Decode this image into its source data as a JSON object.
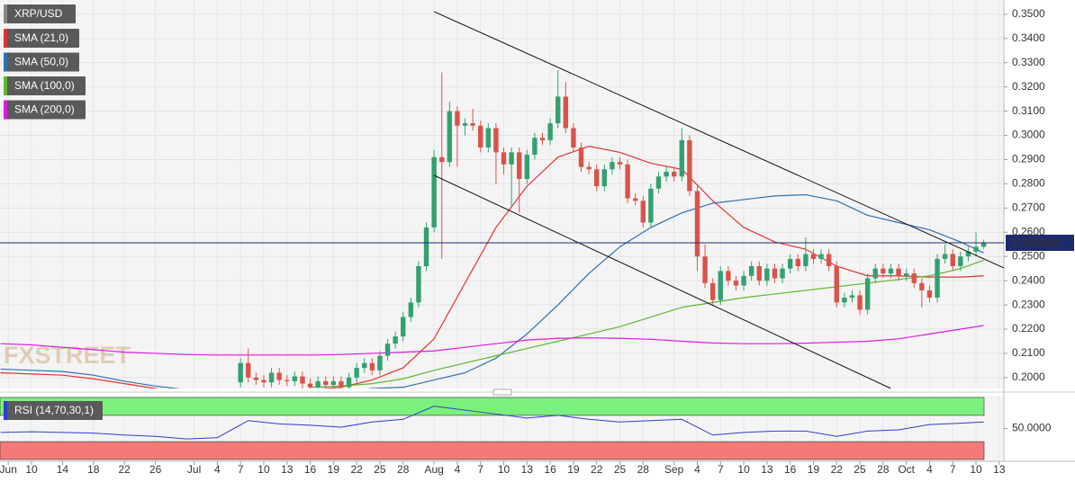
{
  "chart_data": {
    "type": "candlestick",
    "watermark": "FXSTREET",
    "xlim": [
      4.93,
      134.6
    ],
    "ylim": [
      0.1955,
      0.3559
    ],
    "grid": true,
    "up_color": "#33a070",
    "down_color": "#d9534b",
    "yticks": [
      {
        "value": 0.2,
        "label": "0.2000"
      },
      {
        "value": 0.21,
        "label": "0.2100"
      },
      {
        "value": 0.22,
        "label": "0.2200"
      },
      {
        "value": 0.23,
        "label": "0.2300"
      },
      {
        "value": 0.24,
        "label": "0.2400"
      },
      {
        "value": 0.25,
        "label": "0.2500"
      },
      {
        "value": 0.26,
        "label": "0.2600"
      },
      {
        "value": 0.27,
        "label": "0.2700"
      },
      {
        "value": 0.28,
        "label": "0.2800"
      },
      {
        "value": 0.29,
        "label": "0.2900"
      },
      {
        "value": 0.3,
        "label": "0.3000"
      },
      {
        "value": 0.31,
        "label": "0.3100"
      },
      {
        "value": 0.32,
        "label": "0.3200"
      },
      {
        "value": 0.33,
        "label": "0.3300"
      },
      {
        "value": 0.34,
        "label": "0.3400"
      },
      {
        "value": 0.35,
        "label": "0.3500"
      }
    ],
    "xticks": [
      {
        "value": 6,
        "label": "Jun"
      },
      {
        "value": 9,
        "label": "10"
      },
      {
        "value": 13,
        "label": "14"
      },
      {
        "value": 17,
        "label": "18"
      },
      {
        "value": 21,
        "label": "22"
      },
      {
        "value": 25,
        "label": "26"
      },
      {
        "value": 30,
        "label": "Jul"
      },
      {
        "value": 33,
        "label": "4"
      },
      {
        "value": 36,
        "label": "7"
      },
      {
        "value": 39,
        "label": "10"
      },
      {
        "value": 42,
        "label": "13"
      },
      {
        "value": 45,
        "label": "16"
      },
      {
        "value": 48,
        "label": "19"
      },
      {
        "value": 51,
        "label": "22"
      },
      {
        "value": 54,
        "label": "25"
      },
      {
        "value": 57,
        "label": "28"
      },
      {
        "value": 61,
        "label": "Aug"
      },
      {
        "value": 64,
        "label": "4"
      },
      {
        "value": 67,
        "label": "7"
      },
      {
        "value": 70,
        "label": "10"
      },
      {
        "value": 73,
        "label": "13"
      },
      {
        "value": 76,
        "label": "16"
      },
      {
        "value": 79,
        "label": "19"
      },
      {
        "value": 82,
        "label": "22"
      },
      {
        "value": 85,
        "label": "25"
      },
      {
        "value": 88,
        "label": "28"
      },
      {
        "value": 92,
        "label": "Sep"
      },
      {
        "value": 95,
        "label": "4"
      },
      {
        "value": 98,
        "label": "7"
      },
      {
        "value": 101,
        "label": "10"
      },
      {
        "value": 104,
        "label": "13"
      },
      {
        "value": 107,
        "label": "16"
      },
      {
        "value": 110,
        "label": "19"
      },
      {
        "value": 113,
        "label": "22"
      },
      {
        "value": 116,
        "label": "25"
      },
      {
        "value": 119,
        "label": "28"
      },
      {
        "value": 122,
        "label": "Oct"
      },
      {
        "value": 125,
        "label": "4"
      },
      {
        "value": 128,
        "label": "7"
      },
      {
        "value": 131,
        "label": "10"
      },
      {
        "value": 134,
        "label": "13"
      }
    ],
    "candles": {
      "name": "XRP/USD",
      "x": [
        36,
        37,
        38,
        39,
        40,
        41,
        42,
        43,
        44,
        45,
        46,
        47,
        48,
        49,
        50,
        51,
        52,
        53,
        54,
        55,
        56,
        57,
        58,
        59,
        60,
        61,
        62,
        63,
        64,
        65,
        66,
        67,
        68,
        69,
        70,
        71,
        72,
        73,
        74,
        75,
        76,
        77,
        78,
        79,
        80,
        81,
        82,
        83,
        84,
        85,
        86,
        87,
        88,
        89,
        90,
        91,
        92,
        93,
        94,
        95,
        96,
        97,
        98,
        99,
        100,
        101,
        102,
        103,
        104,
        105,
        106,
        107,
        108,
        109,
        110,
        111,
        112,
        113,
        114,
        115,
        116,
        117,
        118,
        119,
        120,
        121,
        122,
        123,
        124,
        125,
        126,
        127,
        128,
        129,
        130,
        131,
        132
      ],
      "open": [
        0.198,
        0.206,
        0.2,
        0.199,
        0.198,
        0.202,
        0.199,
        0.1985,
        0.2005,
        0.1975,
        0.196,
        0.1985,
        0.197,
        0.1985,
        0.196,
        0.2,
        0.204,
        0.206,
        0.203,
        0.209,
        0.214,
        0.217,
        0.225,
        0.231,
        0.246,
        0.262,
        0.291,
        0.289,
        0.31,
        0.304,
        0.305,
        0.304,
        0.295,
        0.303,
        0.293,
        0.288,
        0.293,
        0.282,
        0.292,
        0.299,
        0.298,
        0.305,
        0.316,
        0.303,
        0.295,
        0.287,
        0.286,
        0.279,
        0.286,
        0.289,
        0.288,
        0.274,
        0.273,
        0.264,
        0.278,
        0.283,
        0.285,
        0.283,
        0.298,
        0.277,
        0.25,
        0.239,
        0.232,
        0.244,
        0.24,
        0.238,
        0.242,
        0.246,
        0.24,
        0.245,
        0.241,
        0.245,
        0.249,
        0.246,
        0.251,
        0.249,
        0.251,
        0.246,
        0.231,
        0.233,
        0.234,
        0.228,
        0.241,
        0.245,
        0.243,
        0.245,
        0.242,
        0.243,
        0.239,
        0.236,
        0.233,
        0.249,
        0.251,
        0.246,
        0.25,
        0.252,
        0.254
      ],
      "high": [
        0.208,
        0.212,
        0.202,
        0.201,
        0.204,
        0.204,
        0.201,
        0.2025,
        0.2025,
        0.1995,
        0.2005,
        0.2005,
        0.2005,
        0.2005,
        0.202,
        0.206,
        0.208,
        0.208,
        0.211,
        0.216,
        0.219,
        0.227,
        0.233,
        0.248,
        0.264,
        0.294,
        0.326,
        0.314,
        0.312,
        0.307,
        0.311,
        0.306,
        0.305,
        0.305,
        0.295,
        0.295,
        0.295,
        0.294,
        0.301,
        0.301,
        0.307,
        0.327,
        0.322,
        0.305,
        0.297,
        0.289,
        0.288,
        0.288,
        0.291,
        0.291,
        0.29,
        0.276,
        0.275,
        0.28,
        0.285,
        0.287,
        0.287,
        0.303,
        0.3,
        0.279,
        0.255,
        0.241,
        0.246,
        0.246,
        0.242,
        0.244,
        0.248,
        0.248,
        0.247,
        0.247,
        0.247,
        0.251,
        0.251,
        0.258,
        0.253,
        0.253,
        0.253,
        0.248,
        0.235,
        0.236,
        0.236,
        0.243,
        0.247,
        0.247,
        0.247,
        0.247,
        0.245,
        0.245,
        0.241,
        0.238,
        0.251,
        0.255,
        0.253,
        0.252,
        0.254,
        0.26,
        0.257
      ],
      "low": [
        0.196,
        0.198,
        0.197,
        0.196,
        0.196,
        0.197,
        0.1965,
        0.1965,
        0.1955,
        0.194,
        0.194,
        0.195,
        0.195,
        0.194,
        0.194,
        0.198,
        0.202,
        0.201,
        0.201,
        0.207,
        0.212,
        0.215,
        0.223,
        0.229,
        0.244,
        0.26,
        0.249,
        0.287,
        0.287,
        0.3,
        0.302,
        0.293,
        0.293,
        0.28,
        0.284,
        0.27,
        0.268,
        0.28,
        0.29,
        0.296,
        0.296,
        0.303,
        0.301,
        0.293,
        0.285,
        0.284,
        0.277,
        0.277,
        0.284,
        0.286,
        0.272,
        0.271,
        0.262,
        0.262,
        0.276,
        0.281,
        0.281,
        0.281,
        0.275,
        0.244,
        0.237,
        0.23,
        0.23,
        0.238,
        0.236,
        0.236,
        0.24,
        0.238,
        0.238,
        0.239,
        0.239,
        0.243,
        0.244,
        0.244,
        0.247,
        0.247,
        0.244,
        0.229,
        0.229,
        0.231,
        0.226,
        0.226,
        0.239,
        0.241,
        0.241,
        0.24,
        0.24,
        0.237,
        0.229,
        0.231,
        0.231,
        0.247,
        0.244,
        0.244,
        0.248,
        0.25,
        0.253
      ],
      "close": [
        0.206,
        0.2,
        0.199,
        0.198,
        0.202,
        0.199,
        0.1985,
        0.2005,
        0.1975,
        0.196,
        0.1985,
        0.197,
        0.1985,
        0.196,
        0.2,
        0.204,
        0.206,
        0.203,
        0.209,
        0.214,
        0.217,
        0.225,
        0.231,
        0.246,
        0.262,
        0.291,
        0.289,
        0.31,
        0.304,
        0.305,
        0.304,
        0.295,
        0.303,
        0.293,
        0.288,
        0.293,
        0.282,
        0.292,
        0.299,
        0.298,
        0.305,
        0.316,
        0.303,
        0.295,
        0.287,
        0.286,
        0.279,
        0.286,
        0.289,
        0.288,
        0.274,
        0.273,
        0.264,
        0.278,
        0.283,
        0.285,
        0.283,
        0.298,
        0.277,
        0.25,
        0.239,
        0.232,
        0.244,
        0.24,
        0.238,
        0.242,
        0.246,
        0.24,
        0.245,
        0.241,
        0.245,
        0.249,
        0.246,
        0.251,
        0.249,
        0.251,
        0.246,
        0.231,
        0.233,
        0.234,
        0.228,
        0.241,
        0.245,
        0.243,
        0.245,
        0.242,
        0.243,
        0.239,
        0.236,
        0.233,
        0.249,
        0.251,
        0.246,
        0.25,
        0.252,
        0.254,
        0.255643
      ]
    },
    "last_price": 0.255643,
    "x": [
      5,
      9,
      13,
      17,
      21,
      25,
      29,
      33,
      37,
      41,
      45,
      49,
      53,
      57,
      61,
      65,
      69,
      73,
      77,
      81,
      85,
      89,
      93,
      97,
      101,
      105,
      109,
      113,
      117,
      121,
      125,
      129,
      132
    ],
    "series": [
      {
        "name": "SMA (21,0)",
        "color": "#e5312f",
        "values": [
          0.202,
          0.2015,
          0.201,
          0.1995,
          0.1975,
          0.1955,
          0.194,
          0.193,
          0.1935,
          0.194,
          0.195,
          0.196,
          0.199,
          0.204,
          0.216,
          0.239,
          0.262,
          0.279,
          0.291,
          0.2955,
          0.293,
          0.2885,
          0.286,
          0.273,
          0.262,
          0.256,
          0.253,
          0.246,
          0.242,
          0.242,
          0.2415,
          0.2415,
          0.242
        ]
      },
      {
        "name": "SMA (50,0)",
        "color": "#2f6fb3",
        "values": [
          0.2035,
          0.203,
          0.2025,
          0.201,
          0.1985,
          0.1965,
          0.195,
          0.194,
          0.1935,
          0.1935,
          0.1935,
          0.194,
          0.1955,
          0.196,
          0.199,
          0.202,
          0.208,
          0.218,
          0.23,
          0.243,
          0.254,
          0.262,
          0.268,
          0.272,
          0.2735,
          0.275,
          0.2755,
          0.273,
          0.267,
          0.264,
          0.261,
          0.256,
          0.2515
        ]
      },
      {
        "name": "SMA (100,0)",
        "color": "#5cb82e",
        "values": [
          null,
          null,
          null,
          null,
          null,
          null,
          null,
          null,
          null,
          null,
          0.196,
          0.1965,
          0.1975,
          0.1995,
          0.203,
          0.206,
          0.209,
          0.212,
          0.215,
          0.218,
          0.221,
          0.225,
          0.229,
          0.231,
          0.233,
          0.2345,
          0.236,
          0.2375,
          0.239,
          0.2405,
          0.242,
          0.245,
          0.2485
        ]
      },
      {
        "name": "SMA (200,0)",
        "color": "#e317e3",
        "values": [
          0.214,
          0.2135,
          0.2125,
          0.2115,
          0.2105,
          0.21,
          0.2095,
          0.2093,
          0.2093,
          0.2093,
          0.2093,
          0.2095,
          0.21,
          0.2105,
          0.211,
          0.2125,
          0.214,
          0.2155,
          0.2162,
          0.2164,
          0.2162,
          0.2158,
          0.215,
          0.2143,
          0.214,
          0.214,
          0.2142,
          0.2146,
          0.215,
          0.216,
          0.218,
          0.22,
          0.2215
        ]
      }
    ],
    "trendlines": [
      {
        "x": [
          61,
          134.6
        ],
        "y": [
          0.3511,
          0.2453
        ]
      },
      {
        "x": [
          61,
          120
        ],
        "y": [
          0.2835,
          0.1955
        ]
      }
    ],
    "rsi": {
      "name": "RSI (14,70,30,1)",
      "color": "#2a3fd0",
      "ylim": [
        0,
        100
      ],
      "levels": [
        70,
        30
      ],
      "yticks": [
        {
          "value": 50,
          "label": "50.0000"
        }
      ],
      "values": [
        44,
        45,
        44,
        43,
        40,
        38,
        34,
        36,
        62,
        57,
        55,
        52,
        60,
        64,
        84,
        78,
        72,
        66,
        70,
        64,
        60,
        62,
        64,
        40,
        44,
        46,
        46,
        38,
        46,
        48,
        56,
        58,
        60
      ]
    }
  }
}
